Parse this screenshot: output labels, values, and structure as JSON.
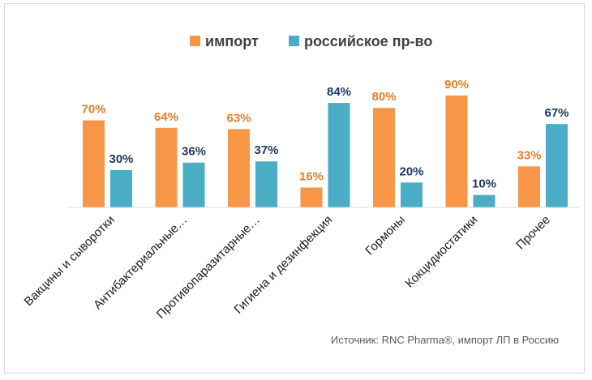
{
  "chart_data": {
    "type": "bar",
    "categories": [
      "Вакцины и сыворотки",
      "Антибактериальные…",
      "Противопаразитарные…",
      "Гигиена и дезинфекция",
      "Гормоны",
      "Кокцидиостатики",
      "Прочее"
    ],
    "series": [
      {
        "name": "импорт",
        "values": [
          70,
          64,
          63,
          16,
          80,
          90,
          33
        ],
        "labels": [
          "70%",
          "64%",
          "63%",
          "16%",
          "80%",
          "90%",
          "33%"
        ],
        "color": "#f79646"
      },
      {
        "name": "российское пр-во",
        "values": [
          30,
          36,
          37,
          84,
          20,
          10,
          67
        ],
        "labels": [
          "30%",
          "36%",
          "37%",
          "84%",
          "20%",
          "10%",
          "67%"
        ],
        "color": "#4bacc6"
      }
    ],
    "label_colors": [
      "#e47d2c",
      "#1f3864"
    ],
    "ylim": [
      0,
      100
    ],
    "legend_position": "top",
    "grid": false,
    "source_note": "Источник: RNC Pharma®, импорт ЛП в Россию"
  }
}
